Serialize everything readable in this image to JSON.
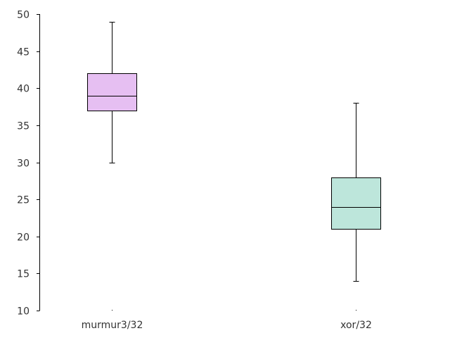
{
  "chart_data": {
    "type": "box",
    "title": "",
    "xlabel": "",
    "ylabel": "",
    "ylim": [
      10,
      50
    ],
    "yticks": [
      10,
      15,
      20,
      25,
      30,
      35,
      40,
      45,
      50
    ],
    "grid": false,
    "legend": "none",
    "categories": [
      "murmur3/32",
      "xor/32"
    ],
    "boxes": [
      {
        "category": "murmur3/32",
        "min": 30,
        "q1": 37,
        "median": 39,
        "q3": 42,
        "max": 49,
        "color": "#e6bff2"
      },
      {
        "category": "xor/32",
        "min": 14,
        "q1": 21,
        "median": 24,
        "q3": 28,
        "max": 38,
        "color": "#bde6db"
      }
    ]
  }
}
